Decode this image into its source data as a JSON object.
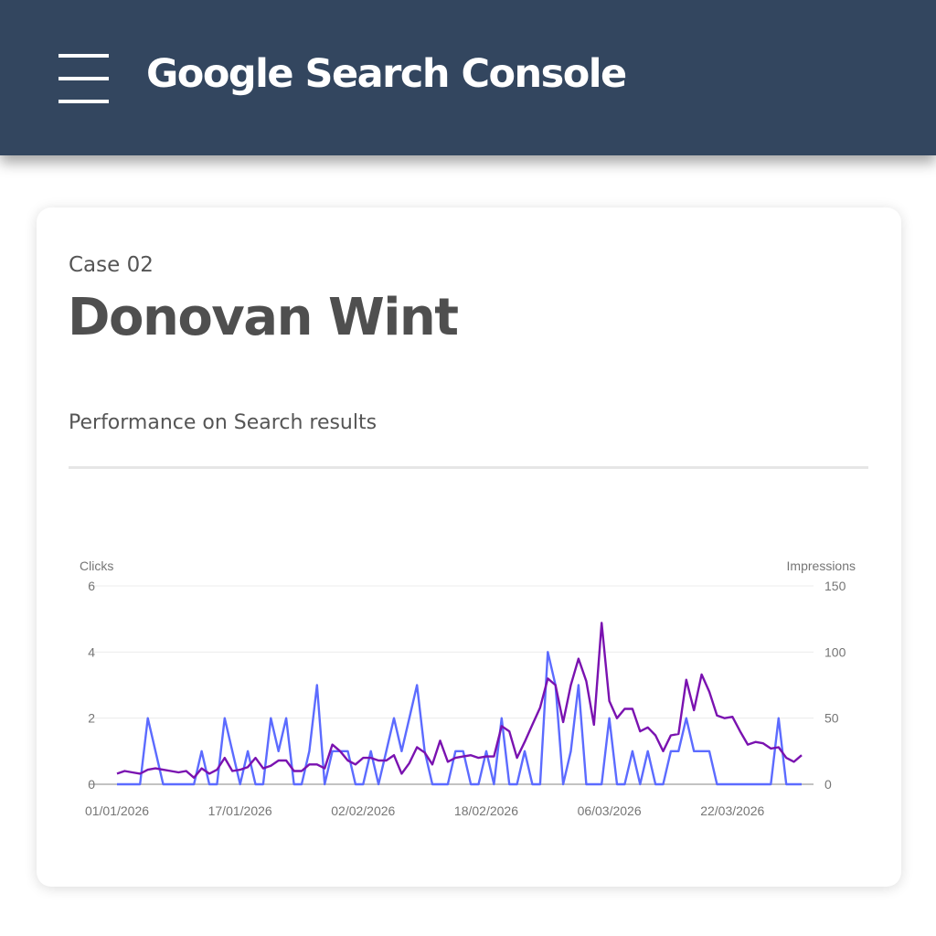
{
  "header": {
    "title": "Google Search Console",
    "menu_icon": "hamburger-menu-icon",
    "background": "#33465f"
  },
  "card": {
    "case_label": "Case 02",
    "name": "Donovan Wint",
    "section_title": "Performance on Search results"
  },
  "chart_data": {
    "type": "line",
    "title": "",
    "xlabel": "",
    "ylabel_left": "Clicks",
    "ylabel_right": "Impressions",
    "ylim_left": [
      0,
      6
    ],
    "ylim_right": [
      0,
      150
    ],
    "yticks_left": [
      "0",
      "2",
      "4",
      "6"
    ],
    "yticks_right": [
      "0",
      "50",
      "100",
      "150"
    ],
    "xtick_labels": [
      "01/01/2026",
      "17/01/2026",
      "02/02/2026",
      "18/02/2026",
      "06/03/2026",
      "22/03/2026"
    ],
    "x_start": "01/01/2026",
    "x_end": "31/03/2026",
    "grid": true,
    "series": [
      {
        "name": "Clicks",
        "axis": "left",
        "color": "#5c6bff",
        "values": [
          0,
          0,
          0,
          0,
          2,
          1,
          0,
          0,
          0,
          0,
          0,
          1,
          0,
          0,
          2,
          1,
          0,
          1,
          0,
          0,
          2,
          1,
          2,
          0,
          0,
          1,
          3,
          0,
          1,
          1,
          1,
          0,
          0,
          1,
          0,
          1,
          2,
          1,
          2,
          3,
          1,
          0,
          0,
          0,
          1,
          1,
          0,
          0,
          1,
          0,
          2,
          0,
          0,
          1,
          0,
          0,
          4,
          3,
          0,
          1,
          3,
          0,
          0,
          0,
          2,
          0,
          0,
          1,
          0,
          1,
          0,
          0,
          1,
          1,
          2,
          1,
          1,
          1,
          0,
          0,
          0,
          0,
          0,
          0,
          0,
          0,
          2,
          0,
          0,
          0
        ]
      },
      {
        "name": "Impressions",
        "axis": "right",
        "color": "#7a12b0",
        "values": [
          8,
          10,
          9,
          8,
          11,
          12,
          11,
          10,
          9,
          10,
          5,
          12,
          8,
          11,
          20,
          10,
          11,
          13,
          20,
          12,
          14,
          18,
          18,
          10,
          10,
          15,
          15,
          12,
          30,
          25,
          18,
          15,
          20,
          20,
          18,
          18,
          22,
          8,
          16,
          28,
          24,
          15,
          33,
          17,
          20,
          21,
          22,
          20,
          21,
          21,
          44,
          40,
          20,
          32,
          45,
          58,
          80,
          75,
          47,
          75,
          95,
          78,
          45,
          122,
          63,
          50,
          57,
          57,
          40,
          43,
          37,
          25,
          37,
          38,
          79,
          56,
          83,
          70,
          52,
          50,
          51,
          40,
          30,
          32,
          31,
          27,
          28,
          20,
          17,
          22
        ]
      }
    ]
  }
}
